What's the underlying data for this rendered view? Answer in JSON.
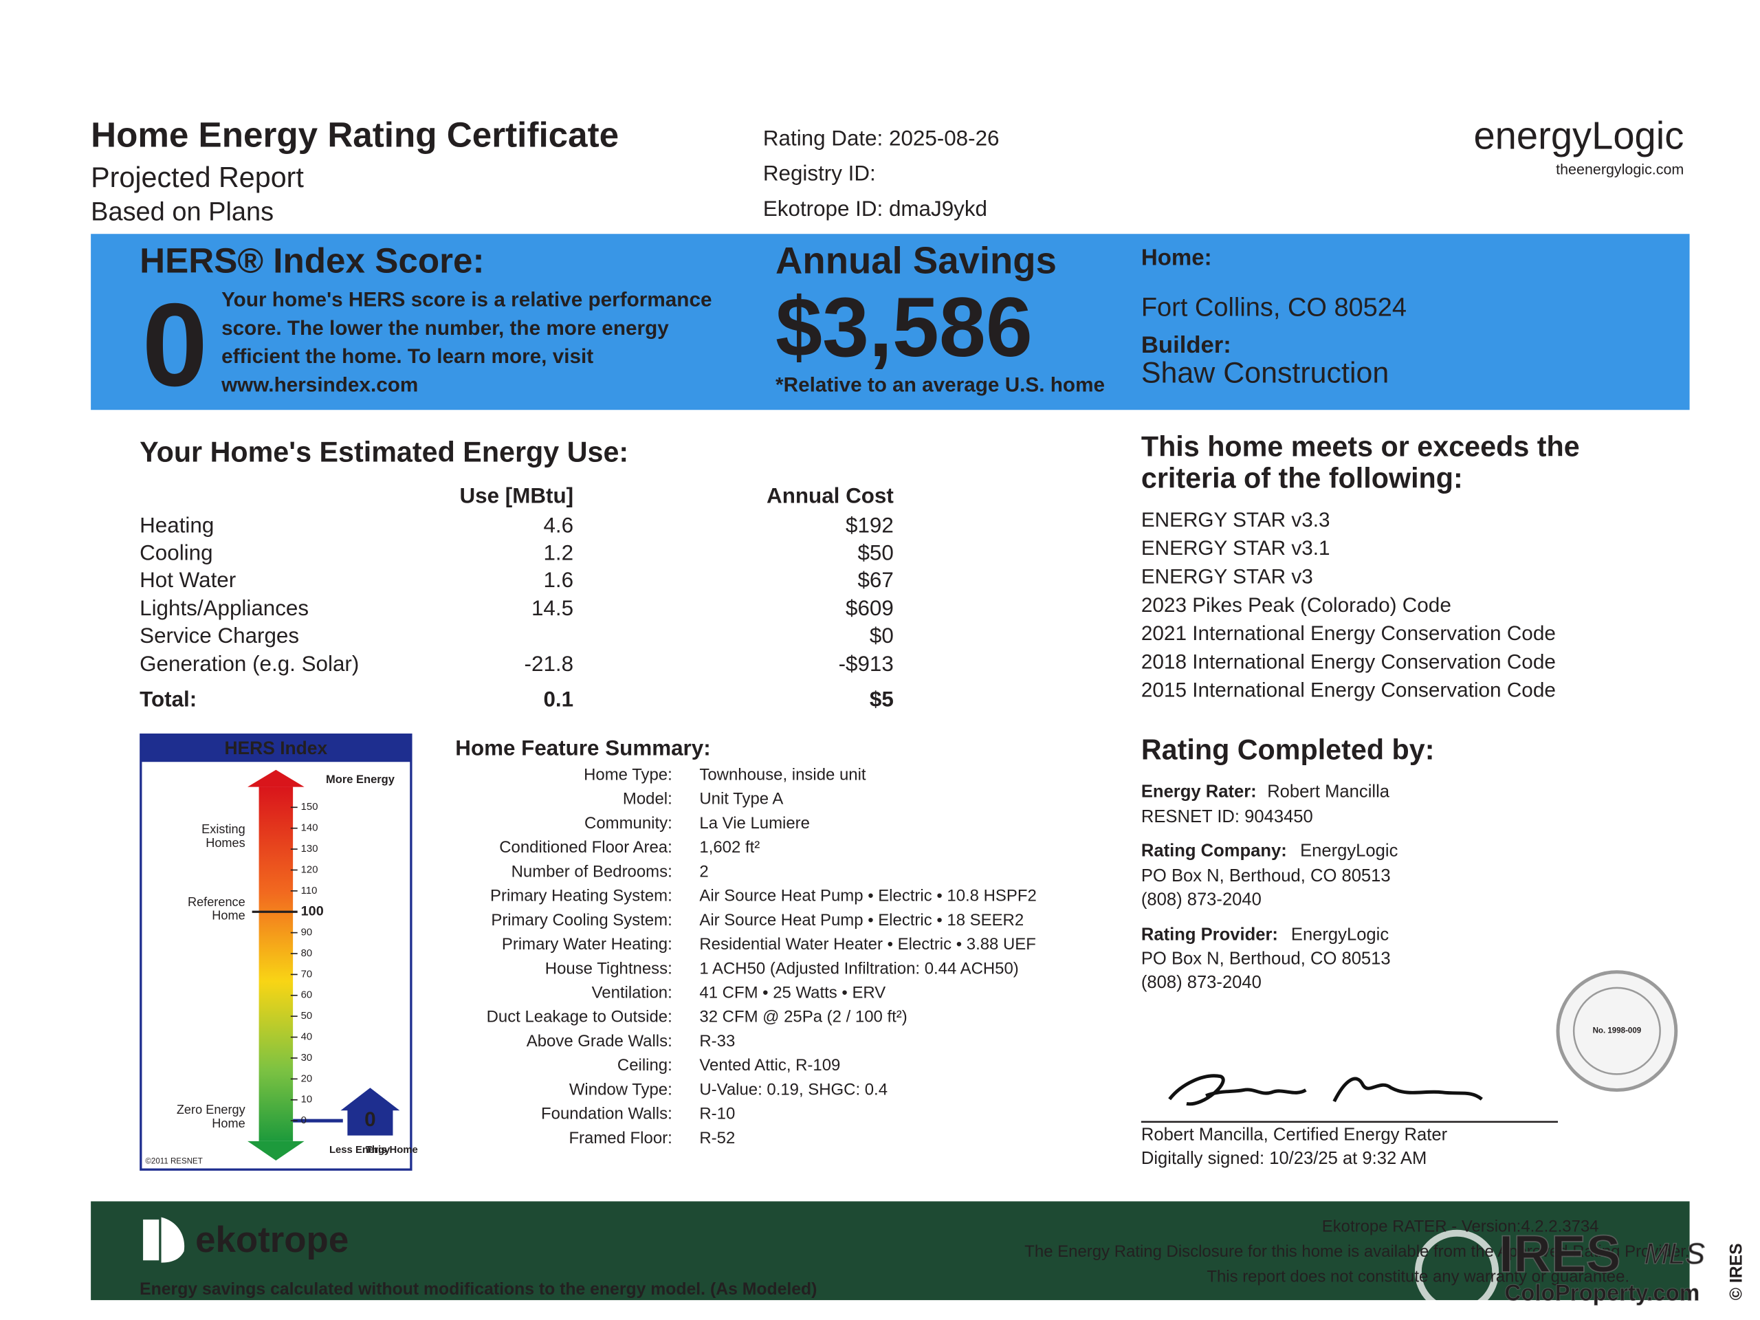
{
  "header": {
    "title": "Home Energy Rating Certificate",
    "subtitle_lines": [
      "Projected Report",
      "Based on Plans"
    ],
    "rating_date": "Rating Date: 2025-08-26",
    "registry_id": "Registry ID:",
    "ekotrope_id": "Ekotrope ID: dmaJ9ykd",
    "logo": "energyLogic",
    "logo_url": "theenergylogic.com"
  },
  "banner": {
    "hers_heading": "HERS® Index Score:",
    "hers_score": "0",
    "hers_text_lines": [
      "Your home's HERS score is a relative performance",
      "score. The lower the number, the more energy",
      "efficient the home. To learn more, visit",
      "www.hersindex.com"
    ],
    "savings_heading": "Annual Savings",
    "savings_amount": "$3,586",
    "savings_note": "*Relative to an average U.S. home",
    "home_label": "Home:",
    "home_address": "Fort Collins, CO 80524",
    "builder_label": "Builder:",
    "builder": "Shaw Construction"
  },
  "energy_use": {
    "title": "Your Home's Estimated Energy Use:",
    "columns": [
      "Use [MBtu]",
      "Annual Cost"
    ],
    "rows": [
      {
        "label": "Heating",
        "use": "4.6",
        "cost": "$192"
      },
      {
        "label": "Cooling",
        "use": "1.2",
        "cost": "$50"
      },
      {
        "label": "Hot Water",
        "use": "1.6",
        "cost": "$67"
      },
      {
        "label": "Lights/Appliances",
        "use": "14.5",
        "cost": "$609"
      },
      {
        "label": "Service Charges",
        "use": null,
        "cost": "$0"
      },
      {
        "label": "Generation (e.g. Solar)",
        "use": "-21.8",
        "cost": "-$913"
      }
    ],
    "total": {
      "label": "Total:",
      "use": "0.1",
      "cost": "$5"
    }
  },
  "criteria": {
    "title_lines": [
      "This home meets or exceeds the",
      "criteria of the following:"
    ],
    "items": [
      "ENERGY STAR v3.3",
      "ENERGY STAR v3.1",
      "ENERGY STAR v3",
      "2023 Pikes Peak (Colorado) Code",
      "2021 International Energy Conservation Code",
      "2018 International Energy Conservation Code",
      "2015 International Energy Conservation Code"
    ]
  },
  "hers_chart": {
    "title": "HERS Index",
    "more_energy": "More Energy",
    "less_energy": "Less Energy",
    "ticks": [
      "150",
      "140",
      "130",
      "120",
      "110",
      "100",
      "90",
      "80",
      "70",
      "60",
      "50",
      "40",
      "30",
      "20",
      "10",
      "0"
    ],
    "existing_homes": [
      "Existing",
      "Homes"
    ],
    "reference_home": [
      "Reference",
      "Home"
    ],
    "zero_energy_home": [
      "Zero Energy",
      "Home"
    ],
    "this_home": "This Home",
    "score": "0",
    "copyright": "©2011 RESNET"
  },
  "features": {
    "title": "Home Feature Summary:",
    "rows": [
      {
        "label": "Home Type:",
        "value": "Townhouse, inside unit"
      },
      {
        "label": "Model:",
        "value": "Unit Type A"
      },
      {
        "label": "Community:",
        "value": "La Vie Lumiere"
      },
      {
        "label": "Conditioned Floor Area:",
        "value": "1,602 ft²"
      },
      {
        "label": "Number of Bedrooms:",
        "value": "2"
      },
      {
        "label": "Primary Heating System:",
        "value": "Air Source Heat Pump • Electric • 10.8 HSPF2"
      },
      {
        "label": "Primary Cooling System:",
        "value": "Air Source Heat Pump • Electric • 18 SEER2"
      },
      {
        "label": "Primary Water Heating:",
        "value": "Residential Water Heater • Electric • 3.88 UEF"
      },
      {
        "label": "House Tightness:",
        "value": "1 ACH50 (Adjusted Infiltration: 0.44 ACH50)"
      },
      {
        "label": "Ventilation:",
        "value": "41 CFM • 25 Watts • ERV"
      },
      {
        "label": "Duct Leakage to Outside:",
        "value": "32 CFM @ 25Pa (2 / 100 ft²)"
      },
      {
        "label": "Above Grade Walls:",
        "value": "R-33"
      },
      {
        "label": "Ceiling:",
        "value": "Vented Attic, R-109"
      },
      {
        "label": "Window Type:",
        "value": "U-Value: 0.19, SHGC: 0.4"
      },
      {
        "label": "Foundation Walls:",
        "value": "R-10"
      },
      {
        "label": "Framed Floor:",
        "value": "R-52"
      }
    ]
  },
  "completed": {
    "title": "Rating Completed by:",
    "rater_label": "Energy Rater:",
    "rater": "Robert Mancilla",
    "resnet_id": "RESNET ID: 9043450",
    "company_label": "Rating Company:",
    "company": "EnergyLogic",
    "company_address": "PO Box N, Berthoud, CO 80513",
    "company_phone": "(808) 873-2040",
    "provider_label": "Rating Provider:",
    "provider": "EnergyLogic",
    "provider_address": "PO Box N, Berthoud, CO 80513",
    "provider_phone": "(808) 873-2040",
    "seal": "No. 1998-009",
    "signature_name": "Robert Mancilla, Certified Energy Rater",
    "signed": "Digitally signed: 10/23/25 at 9:32 AM"
  },
  "footer": {
    "brand": "ekotrope",
    "note": "Energy savings calculated without modifications to the energy model. (As Modeled)",
    "version": "Ekotrope RATER - Version:4.2.2.3734",
    "disclosure": "The Energy Rating Disclosure for this home is available from the Approved Rating Provider.",
    "disclaimer": "This report does not constitute any warranty or guarantee."
  },
  "watermark": {
    "brand": "IRES",
    "mls": "MLS",
    "site": "ColoProperty.com",
    "side": "© IRES"
  }
}
